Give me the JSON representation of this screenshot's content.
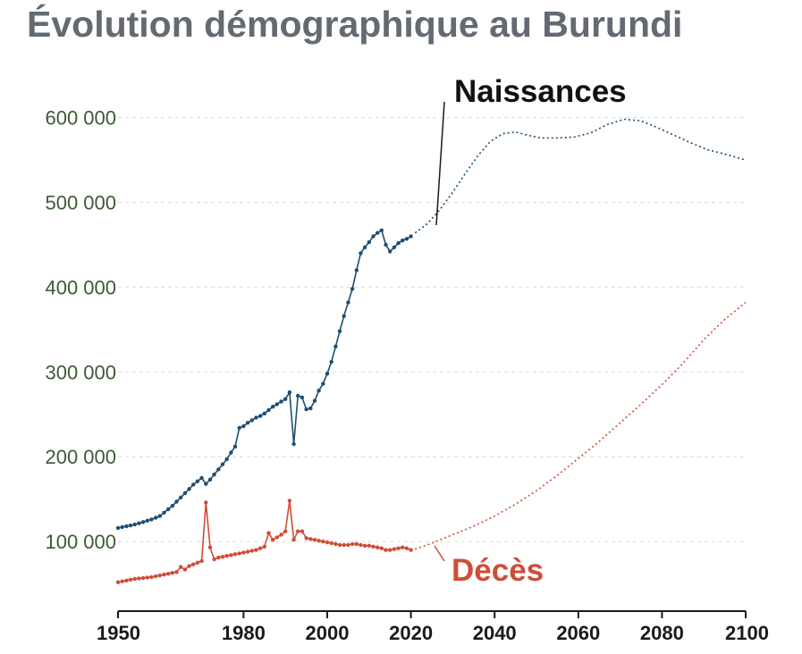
{
  "chart_data": {
    "type": "line",
    "title": "Évolution démographique au Burundi",
    "xlim": [
      1950,
      2100
    ],
    "ylim": [
      0,
      650000
    ],
    "x_ticks": [
      1950,
      1980,
      2000,
      2020,
      2040,
      2060,
      2080,
      2100
    ],
    "x_tick_labels": [
      "1950",
      "1980",
      "2000",
      "2020",
      "2040",
      "2060",
      "2080",
      "2100"
    ],
    "y_ticks": [
      100000,
      200000,
      300000,
      400000,
      500000,
      600000
    ],
    "y_tick_labels": [
      "100 000",
      "200 000",
      "300 000",
      "400 000",
      "500 000",
      "600 000"
    ],
    "grid": true,
    "series": [
      {
        "name": "Naissances",
        "color": "#1d4e73",
        "historical": [
          [
            1950,
            116000
          ],
          [
            1951,
            117000
          ],
          [
            1952,
            118000
          ],
          [
            1953,
            119000
          ],
          [
            1954,
            120000
          ],
          [
            1955,
            121500
          ],
          [
            1956,
            123000
          ],
          [
            1957,
            124500
          ],
          [
            1958,
            126000
          ],
          [
            1959,
            128000
          ],
          [
            1960,
            130000
          ],
          [
            1961,
            134000
          ],
          [
            1962,
            138000
          ],
          [
            1963,
            142000
          ],
          [
            1964,
            147000
          ],
          [
            1965,
            152000
          ],
          [
            1966,
            157000
          ],
          [
            1967,
            162000
          ],
          [
            1968,
            167000
          ],
          [
            1969,
            171000
          ],
          [
            1970,
            175000
          ],
          [
            1971,
            168000
          ],
          [
            1972,
            173000
          ],
          [
            1973,
            179000
          ],
          [
            1974,
            185000
          ],
          [
            1975,
            191000
          ],
          [
            1976,
            197000
          ],
          [
            1977,
            205000
          ],
          [
            1978,
            212000
          ],
          [
            1979,
            234000
          ],
          [
            1980,
            236000
          ],
          [
            1981,
            240000
          ],
          [
            1982,
            243000
          ],
          [
            1983,
            246000
          ],
          [
            1984,
            248000
          ],
          [
            1985,
            251000
          ],
          [
            1986,
            255000
          ],
          [
            1987,
            259000
          ],
          [
            1988,
            262000
          ],
          [
            1989,
            265000
          ],
          [
            1990,
            268000
          ],
          [
            1991,
            276000
          ],
          [
            1992,
            215000
          ],
          [
            1993,
            272000
          ],
          [
            1994,
            270000
          ],
          [
            1995,
            256000
          ],
          [
            1996,
            257000
          ],
          [
            1997,
            266000
          ],
          [
            1998,
            278000
          ],
          [
            1999,
            286000
          ],
          [
            2000,
            298000
          ],
          [
            2001,
            312000
          ],
          [
            2002,
            330000
          ],
          [
            2003,
            348000
          ],
          [
            2004,
            366000
          ],
          [
            2005,
            382000
          ],
          [
            2006,
            398000
          ],
          [
            2007,
            420000
          ],
          [
            2008,
            440000
          ],
          [
            2009,
            447000
          ],
          [
            2010,
            453000
          ],
          [
            2011,
            460000
          ],
          [
            2012,
            464000
          ],
          [
            2013,
            467000
          ],
          [
            2014,
            450000
          ],
          [
            2015,
            442000
          ],
          [
            2016,
            447000
          ],
          [
            2017,
            452000
          ],
          [
            2018,
            455000
          ],
          [
            2019,
            457000
          ],
          [
            2020,
            460000
          ]
        ],
        "projection": [
          [
            2021,
            464000
          ],
          [
            2024,
            475000
          ],
          [
            2027,
            492000
          ],
          [
            2030,
            512000
          ],
          [
            2033,
            534000
          ],
          [
            2036,
            555000
          ],
          [
            2039,
            572000
          ],
          [
            2042,
            581000
          ],
          [
            2045,
            583000
          ],
          [
            2048,
            579000
          ],
          [
            2051,
            576000
          ],
          [
            2055,
            576000
          ],
          [
            2059,
            577000
          ],
          [
            2063,
            582000
          ],
          [
            2067,
            592000
          ],
          [
            2071,
            598000
          ],
          [
            2075,
            596000
          ],
          [
            2079,
            588000
          ],
          [
            2083,
            579000
          ],
          [
            2087,
            570000
          ],
          [
            2091,
            562000
          ],
          [
            2095,
            557000
          ],
          [
            2100,
            550000
          ]
        ]
      },
      {
        "name": "Décès",
        "color": "#cf4d38",
        "historical": [
          [
            1950,
            52000
          ],
          [
            1951,
            53000
          ],
          [
            1952,
            54000
          ],
          [
            1953,
            55000
          ],
          [
            1954,
            56000
          ],
          [
            1955,
            56500
          ],
          [
            1956,
            57000
          ],
          [
            1957,
            57500
          ],
          [
            1958,
            58000
          ],
          [
            1959,
            59000
          ],
          [
            1960,
            60000
          ],
          [
            1961,
            61000
          ],
          [
            1962,
            62000
          ],
          [
            1963,
            63000
          ],
          [
            1964,
            64000
          ],
          [
            1965,
            70000
          ],
          [
            1966,
            67000
          ],
          [
            1967,
            71000
          ],
          [
            1968,
            73000
          ],
          [
            1969,
            75000
          ],
          [
            1970,
            77000
          ],
          [
            1971,
            146000
          ],
          [
            1972,
            93000
          ],
          [
            1973,
            79000
          ],
          [
            1974,
            81000
          ],
          [
            1975,
            82000
          ],
          [
            1976,
            83000
          ],
          [
            1977,
            84000
          ],
          [
            1978,
            85000
          ],
          [
            1979,
            86000
          ],
          [
            1980,
            87000
          ],
          [
            1981,
            88000
          ],
          [
            1982,
            89000
          ],
          [
            1983,
            90000
          ],
          [
            1984,
            92000
          ],
          [
            1985,
            94000
          ],
          [
            1986,
            110000
          ],
          [
            1987,
            102000
          ],
          [
            1988,
            105000
          ],
          [
            1989,
            108000
          ],
          [
            1990,
            112000
          ],
          [
            1991,
            148000
          ],
          [
            1992,
            102000
          ],
          [
            1993,
            112000
          ],
          [
            1994,
            112000
          ],
          [
            1995,
            104000
          ],
          [
            1996,
            103000
          ],
          [
            1997,
            102000
          ],
          [
            1998,
            101000
          ],
          [
            1999,
            100000
          ],
          [
            2000,
            99000
          ],
          [
            2001,
            98000
          ],
          [
            2002,
            97000
          ],
          [
            2003,
            96000
          ],
          [
            2004,
            96000
          ],
          [
            2005,
            96000
          ],
          [
            2006,
            97000
          ],
          [
            2007,
            97000
          ],
          [
            2008,
            96000
          ],
          [
            2009,
            95000
          ],
          [
            2010,
            95000
          ],
          [
            2011,
            94000
          ],
          [
            2012,
            93000
          ],
          [
            2013,
            92000
          ],
          [
            2014,
            90000
          ],
          [
            2015,
            90000
          ],
          [
            2016,
            91000
          ],
          [
            2017,
            92000
          ],
          [
            2018,
            93000
          ],
          [
            2019,
            92000
          ],
          [
            2020,
            90000
          ]
        ],
        "projection": [
          [
            2021,
            91000
          ],
          [
            2025,
            98000
          ],
          [
            2030,
            108000
          ],
          [
            2035,
            118000
          ],
          [
            2040,
            130000
          ],
          [
            2045,
            144000
          ],
          [
            2050,
            160000
          ],
          [
            2055,
            178000
          ],
          [
            2060,
            198000
          ],
          [
            2065,
            218000
          ],
          [
            2070,
            240000
          ],
          [
            2075,
            262000
          ],
          [
            2080,
            285000
          ],
          [
            2085,
            310000
          ],
          [
            2090,
            338000
          ],
          [
            2095,
            362000
          ],
          [
            2100,
            382000
          ]
        ]
      }
    ]
  }
}
